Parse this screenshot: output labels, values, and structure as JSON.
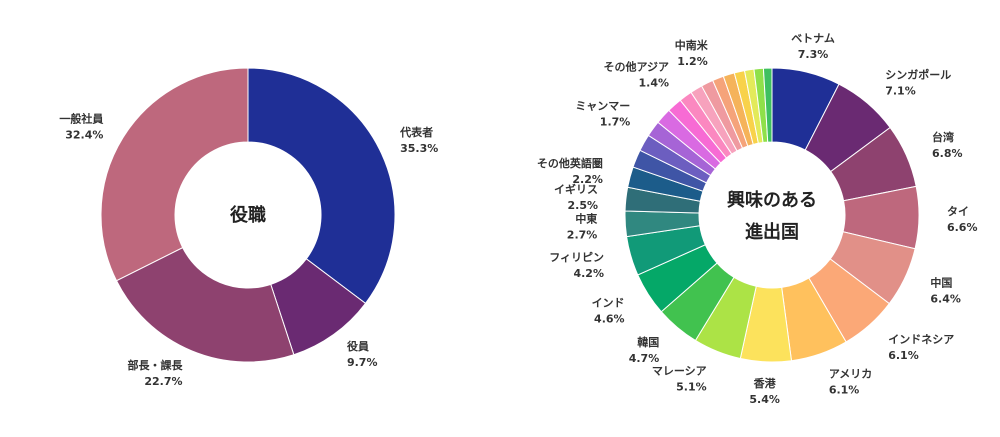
{
  "chart_data": [
    {
      "type": "pie",
      "title": "役職",
      "slices": [
        {
          "name": "代表者",
          "label": "35.3%",
          "value": 35.3,
          "color": "#1f2f96"
        },
        {
          "name": "役員",
          "label": "9.7%",
          "value": 9.7,
          "color": "#6a2a72"
        },
        {
          "name": "部長・課長",
          "label": "22.7%",
          "value": 22.7,
          "color": "#8e426f"
        },
        {
          "name": "一般社員",
          "label": "32.4%",
          "value": 32.4,
          "color": "#be687d"
        }
      ]
    },
    {
      "type": "pie",
      "title": "興味のある\n進出国",
      "slices": [
        {
          "name": "ベトナム",
          "label": "7.3%",
          "value": 7.3,
          "color": "#1f2f96"
        },
        {
          "name": "シンガポール",
          "label": "7.1%",
          "value": 7.1,
          "color": "#6a2a72"
        },
        {
          "name": "台湾",
          "label": "6.8%",
          "value": 6.8,
          "color": "#8e426f"
        },
        {
          "name": "タイ",
          "label": "6.6%",
          "value": 6.6,
          "color": "#be687d"
        },
        {
          "name": "中国",
          "label": "6.4%",
          "value": 6.4,
          "color": "#e19088"
        },
        {
          "name": "インドネシア",
          "label": "6.1%",
          "value": 6.1,
          "color": "#fba877"
        },
        {
          "name": "アメリカ",
          "label": "6.1%",
          "value": 6.1,
          "color": "#ffc15d"
        },
        {
          "name": "香港",
          "label": "5.4%",
          "value": 5.4,
          "color": "#fce25c"
        },
        {
          "name": "マレーシア",
          "label": "5.1%",
          "value": 5.1,
          "color": "#ace346"
        },
        {
          "name": "韓国",
          "label": "4.7%",
          "value": 4.7,
          "color": "#41c24f"
        },
        {
          "name": "インド",
          "label": "4.6%",
          "value": 4.6,
          "color": "#05a868"
        },
        {
          "name": "フィリピン",
          "label": "4.2%",
          "value": 4.2,
          "color": "#119a78"
        },
        {
          "name": "中東",
          "label": "2.7%",
          "value": 2.7,
          "color": "#308880"
        },
        {
          "name": "イギリス",
          "label": "2.5%",
          "value": 2.5,
          "color": "#2f6e78"
        },
        {
          "name": "その他英語圏",
          "label": "2.2%",
          "value": 2.2,
          "color": "#1c5c8a"
        },
        {
          "name": "",
          "label": "",
          "value": 1.9,
          "color": "#3f55a6"
        },
        {
          "name": "",
          "label": "",
          "value": 1.8,
          "color": "#6c5ec0"
        },
        {
          "name": "ミャンマー",
          "label": "1.7%",
          "value": 1.7,
          "color": "#a664d6"
        },
        {
          "name": "",
          "label": "",
          "value": 1.7,
          "color": "#d96ae2"
        },
        {
          "name": "",
          "label": "",
          "value": 1.6,
          "color": "#f76bd4"
        },
        {
          "name": "その他アジア",
          "label": "1.4%",
          "value": 1.4,
          "color": "#fb88c0"
        },
        {
          "name": "",
          "label": "",
          "value": 1.3,
          "color": "#f7a2bd"
        },
        {
          "name": "",
          "label": "",
          "value": 1.3,
          "color": "#ef9aa0"
        },
        {
          "name": "中南米",
          "label": "1.2%",
          "value": 1.2,
          "color": "#f5a37a"
        },
        {
          "name": "",
          "label": "",
          "value": 1.2,
          "color": "#f5b35a"
        },
        {
          "name": "",
          "label": "",
          "value": 1.1,
          "color": "#f8d24a"
        },
        {
          "name": "",
          "label": "",
          "value": 1.0,
          "color": "#e3ea5a"
        },
        {
          "name": "",
          "label": "",
          "value": 1.0,
          "color": "#8fe04a"
        },
        {
          "name": "",
          "label": "",
          "value": 0.9,
          "color": "#3fc060"
        }
      ]
    }
  ]
}
